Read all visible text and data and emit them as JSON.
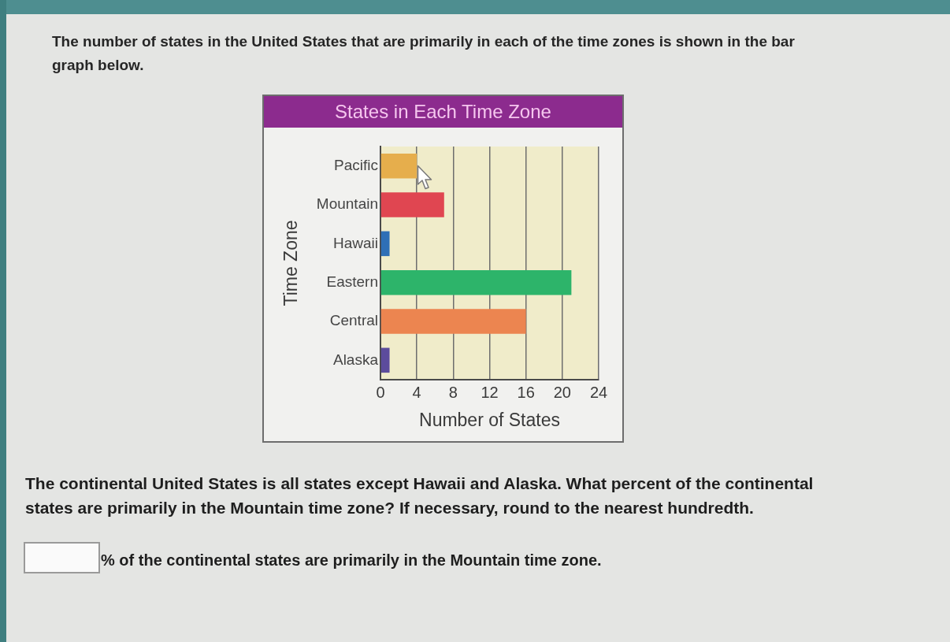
{
  "chart_data": {
    "type": "bar",
    "orientation": "horizontal",
    "title": "States in Each Time Zone",
    "xlabel": "Number of States",
    "ylabel": "Time Zone",
    "categories": [
      "Pacific",
      "Mountain",
      "Hawaii",
      "Eastern",
      "Central",
      "Alaska"
    ],
    "values": [
      4,
      7,
      1,
      21,
      16,
      1
    ],
    "colors": [
      "#e6ae4c",
      "#e04651",
      "#2f6fb6",
      "#2db46a",
      "#ec8550",
      "#5c4c9c"
    ],
    "xlim": [
      0,
      24
    ],
    "xticks": [
      0,
      4,
      8,
      12,
      16,
      20,
      24
    ],
    "grid": "x",
    "annotations": [
      "The number of states in the United States that are primarily in each of the time zones is shown in the bar graph below.",
      "The continental United States is all states except Hawaii and Alaska. What percent of the continental states are primarily in the Mountain time zone? If necessary, round to the nearest hundredth.",
      "% of the continental states are primarily in the Mountain time zone."
    ]
  }
}
